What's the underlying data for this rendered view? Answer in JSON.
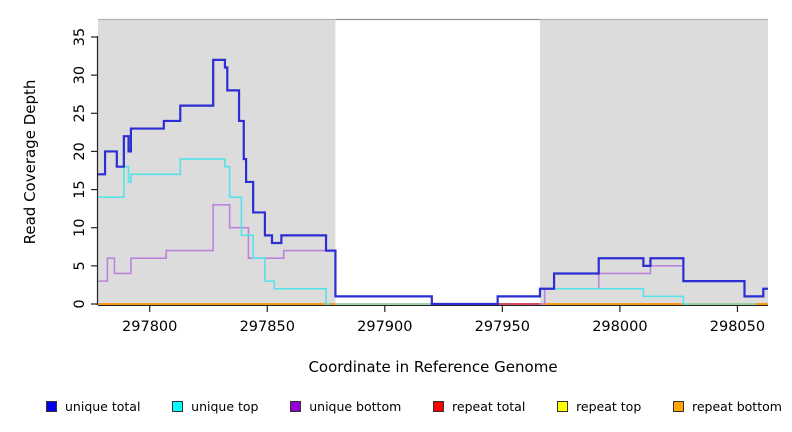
{
  "chart_data": {
    "type": "line",
    "step": true,
    "title": "",
    "xlabel": "Coordinate in Reference Genome",
    "ylabel": "Read Coverage Depth",
    "xlim": [
      297778,
      298063
    ],
    "ylim": [
      0,
      35
    ],
    "x_ticks": [
      297800,
      297850,
      297900,
      297950,
      298000,
      298050
    ],
    "y_ticks": [
      0,
      5,
      10,
      15,
      20,
      25,
      30,
      35
    ],
    "grid": false,
    "legend_position": "bottom",
    "bands": [
      {
        "name": "left-gray-region",
        "from": 297778,
        "to": 297879,
        "fill": "#dcdcdc",
        "edge": "#b3b3b3"
      },
      {
        "name": "masked-white-region",
        "from": 297879,
        "to": 297966,
        "fill": "#ffffff",
        "edge": "#8f8f8f"
      },
      {
        "name": "right-gray-region",
        "from": 297966,
        "to": 298063,
        "fill": "#dcdcdc",
        "edge": "#b3b3b3"
      }
    ],
    "series": [
      {
        "id": "unique-total",
        "name": "unique total",
        "color": "#2d2dd4",
        "width": 2.2,
        "draw": true,
        "points": [
          [
            297778,
            17
          ],
          [
            297781,
            20
          ],
          [
            297786,
            18
          ],
          [
            297789,
            22
          ],
          [
            297791,
            20
          ],
          [
            297792,
            23
          ],
          [
            297806,
            24
          ],
          [
            297813,
            26
          ],
          [
            297827,
            32
          ],
          [
            297832,
            31
          ],
          [
            297833,
            28
          ],
          [
            297838,
            24
          ],
          [
            297840,
            19
          ],
          [
            297841,
            16
          ],
          [
            297844,
            12
          ],
          [
            297849,
            9
          ],
          [
            297852,
            8
          ],
          [
            297856,
            9
          ],
          [
            297875,
            7
          ],
          [
            297879,
            1
          ],
          [
            297920,
            0
          ],
          [
            297948,
            1
          ],
          [
            297966,
            2
          ],
          [
            297972,
            4
          ],
          [
            297991,
            6
          ],
          [
            298010,
            5
          ],
          [
            298013,
            6
          ],
          [
            298027,
            3
          ],
          [
            298053,
            1
          ],
          [
            298061,
            2
          ]
        ]
      },
      {
        "id": "unique-top",
        "name": "unique top",
        "color": "#55e2e9",
        "width": 1.6,
        "draw": true,
        "points": [
          [
            297778,
            14
          ],
          [
            297789,
            18
          ],
          [
            297791,
            16
          ],
          [
            297792,
            17
          ],
          [
            297813,
            19
          ],
          [
            297832,
            18
          ],
          [
            297834,
            14
          ],
          [
            297839,
            9
          ],
          [
            297844,
            6
          ],
          [
            297849,
            3
          ],
          [
            297853,
            2
          ],
          [
            297875,
            0
          ],
          [
            297877,
            null
          ],
          [
            297946,
            0
          ],
          [
            297948,
            1
          ],
          [
            297966,
            2
          ],
          [
            298010,
            1
          ],
          [
            298027,
            0
          ],
          [
            298029,
            null
          ]
        ]
      },
      {
        "id": "unique-bottom",
        "name": "unique bottom",
        "color": "#bb84dc",
        "width": 1.6,
        "draw": true,
        "points": [
          [
            297778,
            3
          ],
          [
            297782,
            6
          ],
          [
            297785,
            4
          ],
          [
            297792,
            6
          ],
          [
            297807,
            7
          ],
          [
            297827,
            13
          ],
          [
            297834,
            10
          ],
          [
            297842,
            6
          ],
          [
            297857,
            7
          ],
          [
            297879,
            1
          ],
          [
            297920,
            0
          ],
          [
            297922,
            null
          ],
          [
            297966,
            0
          ],
          [
            297968,
            2
          ],
          [
            297991,
            4
          ],
          [
            298013,
            5
          ],
          [
            298027,
            3
          ],
          [
            298053,
            1
          ],
          [
            298061,
            2
          ]
        ]
      },
      {
        "id": "repeat-total",
        "name": "repeat total",
        "color": "#cc3350",
        "width": 1.8,
        "draw": false,
        "all_zero": true,
        "points": [
          [
            297778,
            0
          ]
        ]
      },
      {
        "id": "repeat-top",
        "name": "repeat top",
        "color": "#f2e641",
        "width": 1.8,
        "draw": false,
        "all_zero": true,
        "points": [
          [
            297778,
            0
          ]
        ]
      },
      {
        "id": "repeat-bottom",
        "name": "repeat bottom",
        "color": "#ff9100",
        "width": 1.8,
        "draw": false,
        "all_zero": true,
        "points": [
          [
            297778,
            0
          ]
        ]
      }
    ],
    "zero_line_segments": [
      {
        "from": 297778,
        "to": 297879,
        "color": "#ff9100"
      },
      {
        "from": 297879,
        "to": 297948,
        "color": "#94c9a1"
      },
      {
        "from": 297948,
        "to": 297966,
        "color": "#cc3350"
      },
      {
        "from": 297966,
        "to": 298027,
        "color": "#ff9100"
      },
      {
        "from": 298027,
        "to": 298058,
        "color": "#94c9a1"
      },
      {
        "from": 298058,
        "to": 298063,
        "color": "#ff9100"
      }
    ],
    "legend": {
      "items": [
        {
          "label": "unique total",
          "color": "#0000ee"
        },
        {
          "label": "unique top",
          "color": "#00ffff"
        },
        {
          "label": "unique bottom",
          "color": "#9400d3"
        },
        {
          "label": "repeat total",
          "color": "#ff0000"
        },
        {
          "label": "repeat top",
          "color": "#ffff00"
        },
        {
          "label": "repeat bottom",
          "color": "#ffa500"
        }
      ]
    }
  }
}
